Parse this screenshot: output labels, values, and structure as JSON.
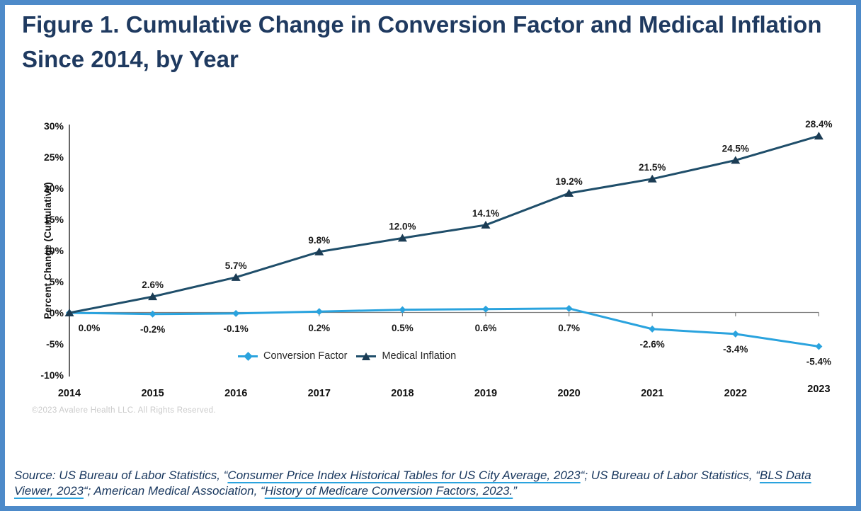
{
  "title": "Figure 1. Cumulative Change in Conversion Factor and Medical Inflation Since 2014, by Year",
  "chart_data": {
    "type": "line",
    "categories": [
      "2014",
      "2015",
      "2016",
      "2017",
      "2018",
      "2019",
      "2020",
      "2021",
      "2022",
      "2023"
    ],
    "series": [
      {
        "name": "Conversion Factor",
        "color": "#2AA3DE",
        "marker": "diamond",
        "values": [
          0.0,
          -0.2,
          -0.1,
          0.2,
          0.5,
          0.6,
          0.7,
          -2.6,
          -3.4,
          -5.4
        ],
        "labels": [
          "0.0%",
          "-0.2%",
          "-0.1%",
          "0.2%",
          "0.5%",
          "0.6%",
          "0.7%",
          "-2.6%",
          "-3.4%",
          "-5.4%"
        ]
      },
      {
        "name": "Medical Inflation",
        "color": "#1F4E6A",
        "marker": "triangle",
        "marker_color": "#1B3C54",
        "values": [
          0.0,
          2.6,
          5.7,
          9.8,
          12.0,
          14.1,
          19.2,
          21.5,
          24.5,
          28.4
        ],
        "labels": [
          "",
          "2.6%",
          "5.7%",
          "9.8%",
          "12.0%",
          "14.1%",
          "19.2%",
          "21.5%",
          "24.5%",
          "28.4%"
        ]
      }
    ],
    "xlabel": "",
    "ylabel": "Percent Change (Cumulative)",
    "ylim": [
      -10,
      30
    ],
    "ytick_step": 5,
    "yticks": [
      "30%",
      "25%",
      "20%",
      "15%",
      "10%",
      "5%",
      "0%",
      "-5%",
      "-10%"
    ],
    "grid": false,
    "legend_position": "inside-bottom-center"
  },
  "footer": {
    "copyright": "©2023 Avalere Health LLC. All Rights Reserved."
  },
  "source": {
    "segments": [
      {
        "text": "Source: US Bureau of Labor Statistics, “",
        "link": false
      },
      {
        "text": "Consumer Price Index Historical Tables for US City Average, 2023",
        "link": true
      },
      {
        "text": "“; US Bureau of Labor Statistics, “",
        "link": false
      },
      {
        "text": "BLS Data Viewer, 2023",
        "link": true
      },
      {
        "text": "“; American Medical Association, “",
        "link": false
      },
      {
        "text": "History of Medicare Conversion Factors, 2023.",
        "link": true
      },
      {
        "text": "”",
        "link": false
      }
    ]
  },
  "colors": {
    "page_border": "#4D8AC9",
    "title_text": "#1F3A60",
    "source_text": "#17365D",
    "link_underline": "#2AA3DE",
    "conversion_factor_line": "#2AA3DE",
    "medical_inflation_line": "#1F4E6A",
    "medical_inflation_marker": "#1B3C54",
    "x_axis": "#808080",
    "y_axis": "#3F3F3F"
  }
}
